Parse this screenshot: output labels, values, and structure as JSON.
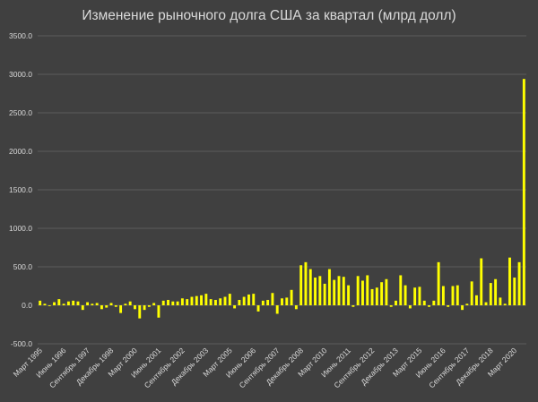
{
  "chart_data": {
    "type": "bar",
    "title": "Изменение рыночного долга США за квартал (млрд долл)",
    "xlabel": "",
    "ylabel": "",
    "ylim": [
      -500,
      3500
    ],
    "yticks": [
      "3500.0",
      "3000.0",
      "2500.0",
      "2000.0",
      "1500.0",
      "1000.0",
      "500.0",
      "0.0",
      "-500.0"
    ],
    "ytick_values": [
      3500,
      3000,
      2500,
      2000,
      1500,
      1000,
      500,
      0,
      -500
    ],
    "grid": true,
    "legend": "none",
    "bar_color": "#ffff00",
    "background": "#404040",
    "tick_labels": [
      {
        "label": "Март 1995",
        "index": 0
      },
      {
        "label": "Июнь 1996",
        "index": 5
      },
      {
        "label": "Сентябрь 1997",
        "index": 10
      },
      {
        "label": "Декабрь 1998",
        "index": 15
      },
      {
        "label": "Март 2000",
        "index": 20
      },
      {
        "label": "Июнь 2001",
        "index": 25
      },
      {
        "label": "Сентябрь 2002",
        "index": 30
      },
      {
        "label": "Декабрь 2003",
        "index": 35
      },
      {
        "label": "Март 2005",
        "index": 40
      },
      {
        "label": "Июнь 2006",
        "index": 45
      },
      {
        "label": "Сентябрь 2007",
        "index": 50
      },
      {
        "label": "Декабрь 2008",
        "index": 55
      },
      {
        "label": "Март 2010",
        "index": 60
      },
      {
        "label": "Июнь 2011",
        "index": 65
      },
      {
        "label": "Сентябрь 2012",
        "index": 70
      },
      {
        "label": "Декабрь 2013",
        "index": 75
      },
      {
        "label": "Март 2015",
        "index": 80
      },
      {
        "label": "Июнь 2016",
        "index": 85
      },
      {
        "label": "Сентябрь 2017",
        "index": 90
      },
      {
        "label": "Декабрь 2018",
        "index": 95
      },
      {
        "label": "Март 2020",
        "index": 100
      }
    ],
    "values": [
      60,
      20,
      -10,
      40,
      80,
      20,
      50,
      60,
      50,
      -60,
      40,
      20,
      30,
      -50,
      -30,
      30,
      -20,
      -100,
      20,
      50,
      -50,
      -170,
      -60,
      -20,
      30,
      -160,
      60,
      70,
      50,
      50,
      90,
      80,
      110,
      120,
      130,
      150,
      80,
      70,
      90,
      110,
      150,
      -40,
      70,
      110,
      140,
      150,
      -80,
      60,
      70,
      160,
      -110,
      90,
      100,
      200,
      -50,
      520,
      560,
      470,
      360,
      380,
      280,
      470,
      330,
      380,
      370,
      260,
      -20,
      380,
      320,
      390,
      210,
      230,
      300,
      340,
      -20,
      60,
      390,
      260,
      -40,
      230,
      240,
      60,
      -20,
      60,
      560,
      250,
      -20,
      250,
      260,
      -60,
      20,
      310,
      130,
      610,
      40,
      290,
      340,
      100,
      20,
      620,
      360,
      560,
      2940
    ]
  }
}
